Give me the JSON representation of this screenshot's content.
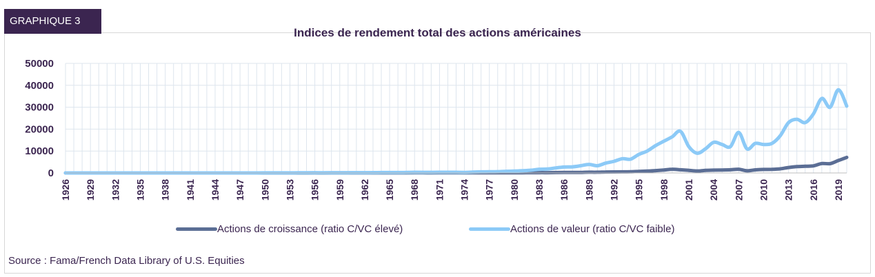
{
  "badge": "GRAPHIQUE 3",
  "source": "Source : Fama/French Data Library of U.S. Equities",
  "chart_data": {
    "type": "line",
    "title": "Indices de rendement total des actions américaines",
    "xlabel": "",
    "ylabel": "",
    "ylim": [
      0,
      50000
    ],
    "yticks": [
      0,
      10000,
      20000,
      30000,
      40000,
      50000
    ],
    "x_tick_labels": [
      "1926",
      "1929",
      "1932",
      "1935",
      "1938",
      "1941",
      "1944",
      "1947",
      "1950",
      "1953",
      "1956",
      "1959",
      "1962",
      "1965",
      "1968",
      "1971",
      "1974",
      "1977",
      "1980",
      "1983",
      "1986",
      "1989",
      "1992",
      "1995",
      "1998",
      "2001",
      "2004",
      "2007",
      "2010",
      "2013",
      "2016",
      "2019"
    ],
    "grid": true,
    "legend_position": "bottom",
    "x": [
      1926,
      1927,
      1928,
      1929,
      1930,
      1931,
      1932,
      1933,
      1934,
      1935,
      1936,
      1937,
      1938,
      1939,
      1940,
      1941,
      1942,
      1943,
      1944,
      1945,
      1946,
      1947,
      1948,
      1949,
      1950,
      1951,
      1952,
      1953,
      1954,
      1955,
      1956,
      1957,
      1958,
      1959,
      1960,
      1961,
      1962,
      1963,
      1964,
      1965,
      1966,
      1967,
      1968,
      1969,
      1970,
      1971,
      1972,
      1973,
      1974,
      1975,
      1976,
      1977,
      1978,
      1979,
      1980,
      1981,
      1982,
      1983,
      1984,
      1985,
      1986,
      1987,
      1988,
      1989,
      1990,
      1991,
      1992,
      1993,
      1994,
      1995,
      1996,
      1997,
      1998,
      1999,
      2000,
      2001,
      2002,
      2003,
      2004,
      2005,
      2006,
      2007,
      2008,
      2009,
      2010,
      2011,
      2012,
      2013,
      2014,
      2015,
      2016,
      2017,
      2018,
      2019,
      2020
    ],
    "series": [
      {
        "name": "Actions de croissance (ratio C/VC élevé)",
        "color": "#5b6e95",
        "values": [
          1,
          1,
          2,
          1,
          1,
          1,
          1,
          1,
          1,
          2,
          2,
          1,
          2,
          2,
          2,
          2,
          2,
          2,
          3,
          4,
          4,
          4,
          4,
          5,
          6,
          7,
          8,
          8,
          12,
          14,
          16,
          15,
          20,
          22,
          22,
          28,
          26,
          30,
          34,
          38,
          36,
          46,
          50,
          48,
          46,
          56,
          66,
          52,
          40,
          54,
          62,
          60,
          64,
          78,
          105,
          95,
          118,
          140,
          140,
          185,
          215,
          230,
          260,
          345,
          335,
          450,
          470,
          510,
          520,
          700,
          840,
          1070,
          1350,
          1700,
          1450,
          1200,
          900,
          1150,
          1300,
          1350,
          1450,
          1700,
          1000,
          1400,
          1600,
          1650,
          1900,
          2500,
          2900,
          3050,
          3250,
          4300,
          4250,
          5700,
          7100
        ]
      },
      {
        "name": "Actions de valeur (ratio C/VC faible)",
        "color": "#8ccaf7",
        "values": [
          1,
          1,
          2,
          1,
          1,
          1,
          1,
          2,
          2,
          3,
          4,
          3,
          3,
          3,
          3,
          3,
          4,
          6,
          8,
          12,
          12,
          13,
          14,
          15,
          20,
          24,
          30,
          30,
          48,
          58,
          62,
          58,
          90,
          100,
          100,
          125,
          120,
          150,
          175,
          200,
          195,
          240,
          300,
          270,
          270,
          300,
          320,
          300,
          250,
          380,
          500,
          530,
          600,
          750,
          850,
          1000,
          1250,
          1700,
          1800,
          2300,
          2700,
          2800,
          3300,
          3900,
          3300,
          4500,
          5300,
          6500,
          6300,
          8500,
          10000,
          12500,
          14500,
          16500,
          19000,
          12000,
          9000,
          11000,
          14000,
          13000,
          12000,
          18500,
          11000,
          13500,
          13000,
          13500,
          17000,
          23000,
          24500,
          23000,
          27000,
          34000,
          30000,
          38000,
          30500
        ]
      }
    ]
  }
}
